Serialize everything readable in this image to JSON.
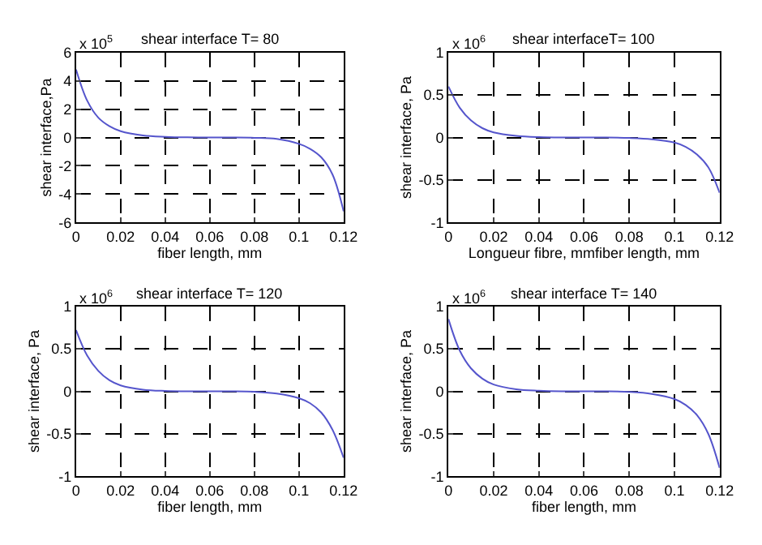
{
  "chart_data": [
    {
      "type": "line",
      "title": "shear interface T= 80",
      "xlabel": "fiber length, mm",
      "ylabel": "shear interface,Pa",
      "annotations": [
        "x 10$^{5}$"
      ],
      "x": [
        0,
        0.005,
        0.01,
        0.015,
        0.02,
        0.03,
        0.04,
        0.05,
        0.06,
        0.07,
        0.08,
        0.09,
        0.1,
        0.105,
        0.11,
        0.115,
        0.12
      ],
      "series": [
        {
          "color": "#5555cc",
          "values": [
            4.8,
            2.6,
            1.4,
            0.8,
            0.45,
            0.15,
            0.05,
            0.01,
            0,
            0,
            -0.02,
            -0.1,
            -0.45,
            -0.8,
            -1.4,
            -2.6,
            -5.2
          ]
        }
      ],
      "xlim": [
        0,
        0.12
      ],
      "xticks": [
        0,
        0.02,
        0.04,
        0.06,
        0.08,
        0.1,
        0.12
      ],
      "ylim": [
        -6,
        6
      ],
      "yticks": [
        -6,
        -4,
        -2,
        0,
        2,
        4,
        6
      ],
      "grid": true,
      "line_style": "solid"
    },
    {
      "type": "line",
      "title": "shear interfaceT= 100",
      "xlabel": "Longueur fibre, mmfiber length, mm",
      "ylabel": "shear interface, Pa",
      "annotations": [
        "x 10$^{6}$"
      ],
      "x": [
        0,
        0.005,
        0.01,
        0.015,
        0.02,
        0.03,
        0.04,
        0.05,
        0.06,
        0.07,
        0.08,
        0.09,
        0.1,
        0.105,
        0.11,
        0.115,
        0.12
      ],
      "series": [
        {
          "color": "#5555cc",
          "values": [
            0.6,
            0.35,
            0.2,
            0.11,
            0.06,
            0.02,
            0.005,
            0,
            0,
            0,
            -0.005,
            -0.02,
            -0.06,
            -0.11,
            -0.2,
            -0.35,
            -0.65
          ]
        }
      ],
      "xlim": [
        0,
        0.12
      ],
      "xticks": [
        0,
        0.02,
        0.04,
        0.06,
        0.08,
        0.1,
        0.12
      ],
      "ylim": [
        -1,
        1
      ],
      "yticks": [
        -1,
        -0.5,
        0,
        0.5,
        1
      ],
      "grid": true,
      "line_style": "solid"
    },
    {
      "type": "line",
      "title": "shear interface T= 120",
      "xlabel": "fiber length, mm",
      "ylabel": "shear interface, Pa",
      "annotations": [
        "x 10$^{6}$"
      ],
      "x": [
        0,
        0.005,
        0.01,
        0.015,
        0.02,
        0.03,
        0.04,
        0.05,
        0.06,
        0.07,
        0.08,
        0.09,
        0.1,
        0.105,
        0.11,
        0.115,
        0.12
      ],
      "series": [
        {
          "color": "#5555cc",
          "values": [
            0.72,
            0.42,
            0.24,
            0.13,
            0.07,
            0.02,
            0.005,
            0,
            0,
            0,
            -0.005,
            -0.025,
            -0.08,
            -0.14,
            -0.25,
            -0.45,
            -0.78
          ]
        }
      ],
      "xlim": [
        0,
        0.12
      ],
      "xticks": [
        0,
        0.02,
        0.04,
        0.06,
        0.08,
        0.1,
        0.12
      ],
      "ylim": [
        -1,
        1
      ],
      "yticks": [
        -1,
        -0.5,
        0,
        0.5,
        1
      ],
      "grid": true,
      "line_style": "solid"
    },
    {
      "type": "line",
      "title": "shear interface T= 140",
      "xlabel": "fiber length, mm",
      "ylabel": "shear interface, Pa",
      "annotations": [
        "x 10$^{6}$"
      ],
      "x": [
        0,
        0.005,
        0.01,
        0.015,
        0.02,
        0.03,
        0.04,
        0.05,
        0.06,
        0.07,
        0.08,
        0.09,
        0.1,
        0.105,
        0.11,
        0.115,
        0.12
      ],
      "series": [
        {
          "color": "#5555cc",
          "values": [
            0.85,
            0.48,
            0.27,
            0.15,
            0.08,
            0.025,
            0.007,
            0,
            0,
            0,
            -0.007,
            -0.03,
            -0.09,
            -0.16,
            -0.28,
            -0.5,
            -0.9
          ]
        }
      ],
      "xlim": [
        0,
        0.12
      ],
      "xticks": [
        0,
        0.02,
        0.04,
        0.06,
        0.08,
        0.1,
        0.12
      ],
      "ylim": [
        -1,
        1
      ],
      "yticks": [
        -1,
        -0.5,
        0,
        0.5,
        1
      ],
      "grid": true,
      "line_style": "solid"
    }
  ]
}
